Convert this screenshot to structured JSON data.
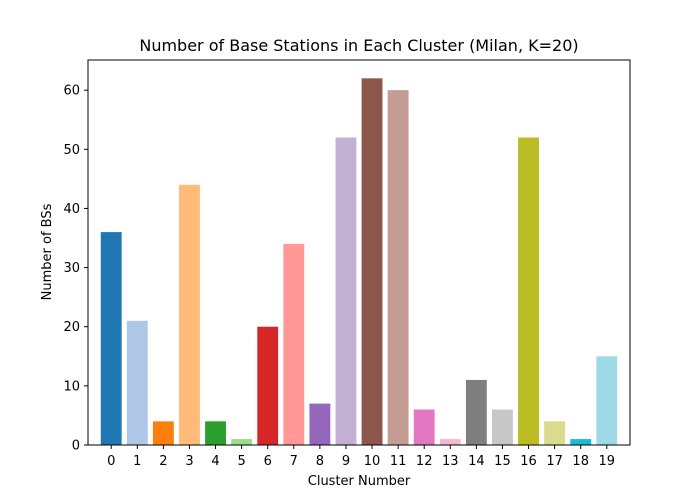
{
  "chart_data": {
    "type": "bar",
    "title": "Number of Base Stations in Each Cluster (Milan, K=20)",
    "xlabel": "Cluster Number",
    "ylabel": "Number of BSs",
    "categories": [
      "0",
      "1",
      "2",
      "3",
      "4",
      "5",
      "6",
      "7",
      "8",
      "9",
      "10",
      "11",
      "12",
      "13",
      "14",
      "15",
      "16",
      "17",
      "18",
      "19"
    ],
    "values": [
      36,
      21,
      4,
      44,
      4,
      1,
      20,
      34,
      7,
      52,
      62,
      60,
      6,
      1,
      11,
      6,
      52,
      4,
      1,
      15
    ],
    "colors": [
      "#1f77b4",
      "#aec7e8",
      "#ff7f0e",
      "#ffbb78",
      "#2ca02c",
      "#98df8a",
      "#d62728",
      "#ff9896",
      "#9467bd",
      "#c5b0d5",
      "#8c564b",
      "#c49c94",
      "#e377c2",
      "#f7b6d2",
      "#7f7f7f",
      "#c7c7c7",
      "#bcbd22",
      "#dbdb8d",
      "#17becf",
      "#9edae5"
    ],
    "ylim": [
      0,
      65.1
    ],
    "yticks": [
      0,
      10,
      20,
      30,
      40,
      50,
      60
    ],
    "grid": false,
    "legend": "none"
  }
}
